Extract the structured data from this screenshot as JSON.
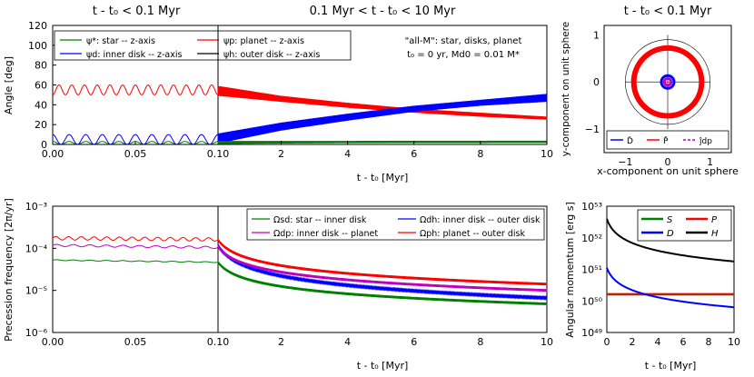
{
  "chart_data": [
    {
      "id": "angle-zoom",
      "type": "line",
      "title": "t - t₀ < 0.1 Myr",
      "xlabel": "",
      "ylabel": "Angle [deg]",
      "xlim": [
        0,
        0.1
      ],
      "ylim": [
        0,
        120
      ],
      "xticks": [
        "0.00",
        "0.05",
        "0.10"
      ],
      "yticks": [
        "0",
        "20",
        "40",
        "60",
        "80",
        "100",
        "120"
      ],
      "series": [
        {
          "name": "ψ*: star -- z-axis",
          "color": "#008000",
          "model": "osc",
          "base": 1.5,
          "amp": 1.5,
          "cycles": 10
        },
        {
          "name": "ψd: inner disk -- z-axis",
          "color": "#0000ff",
          "model": "osc",
          "base": 5,
          "amp": 5,
          "cycles": 10
        },
        {
          "name": "ψp: planet -- z-axis",
          "color": "#ff0000",
          "model": "osc",
          "base": 55,
          "amp": 5,
          "cycles": 13
        },
        {
          "name": "ψh: outer disk -- z-axis",
          "color": "#000000",
          "model": "const",
          "base": 0
        }
      ]
    },
    {
      "id": "angle-long",
      "type": "line",
      "title": "0.1 Myr < t - t₀ < 10 Myr",
      "xlabel": "t - t₀ [Myr]",
      "xlim": [
        0.1,
        10
      ],
      "ylim": [
        0,
        120
      ],
      "xticks": [
        "2",
        "4",
        "6",
        "8",
        "10"
      ],
      "annotations": [
        "\"all-M\":   star, disks, planet",
        "t₀ = 0 yr,   Md0 = 0.01 M*"
      ],
      "series": [
        {
          "name": "planet",
          "color": "#ff0000",
          "band": [
            [
              0.1,
              49,
              59
            ],
            [
              2,
              43,
              49
            ],
            [
              4,
              37,
              42
            ],
            [
              6,
              32,
              36
            ],
            [
              8,
              28,
              32
            ],
            [
              10,
              25,
              28
            ]
          ]
        },
        {
          "name": "inner disk",
          "color": "#0000ff",
          "band": [
            [
              0.1,
              1,
              11
            ],
            [
              2,
              14,
              22
            ],
            [
              4,
              24,
              31
            ],
            [
              6,
              33,
              39
            ],
            [
              8,
              39,
              45
            ],
            [
              10,
              43,
              51
            ]
          ]
        },
        {
          "name": "star",
          "color": "#008000",
          "band": [
            [
              0.1,
              0.5,
              3.5
            ],
            [
              2,
              1,
              3.5
            ],
            [
              4,
              1.3,
              3.5
            ],
            [
              6,
              1.5,
              3.7
            ],
            [
              8,
              1.5,
              3.7
            ],
            [
              10,
              1.6,
              3.8
            ]
          ]
        }
      ]
    },
    {
      "id": "unit-sphere",
      "type": "scatter",
      "title": "t - t₀ < 0.1 Myr",
      "xlabel": "x-component on unit sphere",
      "ylabel": "y-component on unit sphere",
      "xlim": [
        -1.5,
        1.5
      ],
      "ylim": [
        -1.5,
        1.2
      ],
      "xticks": [
        "−1",
        "0",
        "1"
      ],
      "yticks": [
        "−1",
        "0",
        "1"
      ],
      "rings": [
        {
          "name": "P̂",
          "color": "#ff0000",
          "r": 0.8
        },
        {
          "name": "D̂",
          "color": "#0000ff",
          "r": 0.15
        },
        {
          "name": "ĵdp",
          "color": "#bf00bf",
          "r": 0.08
        }
      ],
      "legend": [
        "D̂",
        "P̂",
        "ĵdp"
      ]
    },
    {
      "id": "precession-zoom",
      "type": "line",
      "ylabel": "Precession frequency [2π/yr]",
      "xlabel": "",
      "xlim": [
        0,
        0.1
      ],
      "ylim": [
        "1e-6",
        "1e-3"
      ],
      "xticks": [
        "0.00",
        "0.05",
        "0.10"
      ],
      "yticks": [
        "10⁻⁶",
        "10⁻⁵",
        "10⁻⁴",
        "10⁻³"
      ],
      "series": [
        {
          "name": "Ωsd: star -- inner disk",
          "color": "#008000",
          "log_start": -4.28,
          "log_end": -4.33,
          "wiggle": 0.01,
          "cycles": 10
        },
        {
          "name": "Ωdp: inner disk -- planet",
          "color": "#bf00bf",
          "log_start": -3.93,
          "log_end": -3.98,
          "wiggle": 0.025,
          "cycles": 10
        },
        {
          "name": "Ωph: planet -- outer disk",
          "color": "#ff0000",
          "log_start": -3.76,
          "log_end": -3.79,
          "wiggle": 0.04,
          "cycles": 13
        }
      ]
    },
    {
      "id": "precession-long",
      "type": "line",
      "xlabel": "t - t₀ [Myr]",
      "xlim": [
        0.1,
        10
      ],
      "ylim": [
        "1e-6",
        "1e-3"
      ],
      "xticks": [
        "2",
        "4",
        "6",
        "8",
        "10"
      ],
      "legend": [
        "Ωsd: star -- inner disk",
        "Ωdp: inner disk -- planet",
        "Ωdh: inner disk -- outer disk",
        "Ωph: planet -- outer disk"
      ],
      "series": [
        {
          "name": "Ωsd",
          "color": "#008000",
          "log_start": -4.33,
          "log_end": -5.32,
          "width": 0.06
        },
        {
          "name": "Ωdh",
          "color": "#0000ff",
          "log_start": -3.93,
          "log_end": -5.18,
          "width": 0.03
        },
        {
          "name": "Ωdp",
          "color": "#bf00bf",
          "log_start": -3.96,
          "log_end": -5.0,
          "width": 0.06
        },
        {
          "name": "Ωph",
          "color": "#ff0000",
          "log_start": -3.8,
          "log_end": -4.85,
          "width": 0.06
        }
      ]
    },
    {
      "id": "angular-momentum",
      "type": "line",
      "xlabel": "t - t₀ [Myr]",
      "ylabel": "Angular momentum [erg s]",
      "xlim": [
        0,
        10
      ],
      "ylim": [
        "1e49",
        "1e53"
      ],
      "xticks": [
        "0",
        "2",
        "4",
        "6",
        "8",
        "10"
      ],
      "yticks": [
        "10⁴⁹",
        "10⁵⁰",
        "10⁵¹",
        "10⁵²",
        "10⁵³"
      ],
      "series": [
        {
          "name": "S",
          "color": "#008000",
          "log_start": 50.2,
          "log_end": 50.2
        },
        {
          "name": "P",
          "color": "#ff0000",
          "log_start": 50.22,
          "log_end": 50.22
        },
        {
          "name": "D",
          "color": "#0000ff",
          "log_start": 51.05,
          "log_end": 49.8
        },
        {
          "name": "H",
          "color": "#000000",
          "log_start": 52.6,
          "log_end": 51.25
        }
      ]
    }
  ]
}
